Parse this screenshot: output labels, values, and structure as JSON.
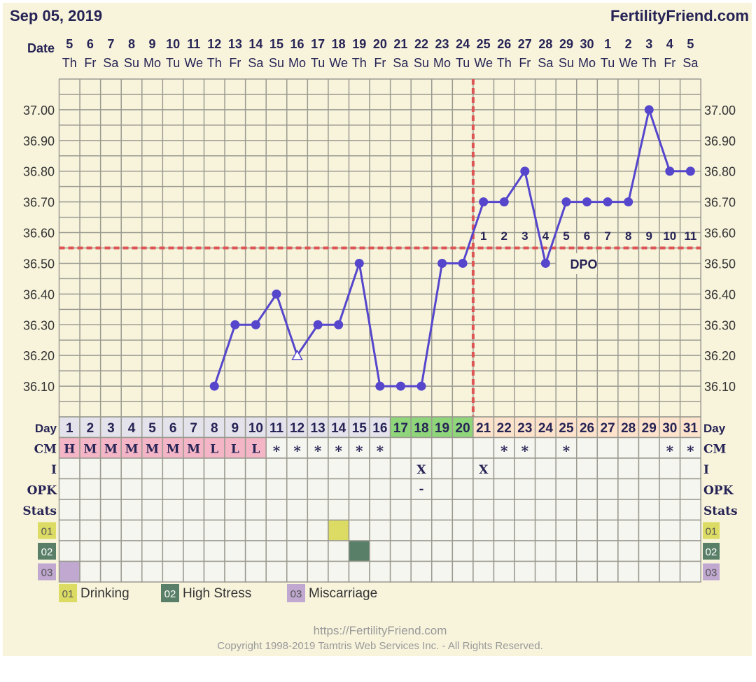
{
  "header": {
    "date": "Sep 05, 2019",
    "brand": "FertilityFriend.com"
  },
  "labels": {
    "date": "Date",
    "day": "Day",
    "cm": "CM",
    "i": "I",
    "opk": "OPK",
    "stats": "Stats",
    "dpo": "DPO"
  },
  "footer": {
    "url": "https://FertilityFriend.com",
    "copyright": "Copyright 1998-2019 Tamtris Web Services Inc. - All Rights Reserved."
  },
  "legend": [
    {
      "code": "01",
      "label": "Drinking",
      "color": "#dcdc64"
    },
    {
      "code": "02",
      "label": "High Stress",
      "color": "#5a7f68"
    },
    {
      "code": "03",
      "label": "Miscarriage",
      "color": "#c0a8d0"
    }
  ],
  "colors": {
    "background": "#f8f4dc",
    "line": "#5546cc",
    "coverline": "#dd5555",
    "cycle_days": "#e4e2ea",
    "fertile_days": "#8fd67a",
    "luteal_days": "#fde3cc",
    "cm_marked": "#f4b6c6"
  },
  "chart_data": {
    "type": "line",
    "ylim": [
      36.0,
      37.1
    ],
    "y_ticks": [
      "37.00",
      "36.90",
      "36.80",
      "36.70",
      "36.60",
      "36.50",
      "36.40",
      "36.30",
      "36.20",
      "36.10"
    ],
    "dates": [
      "5",
      "6",
      "7",
      "8",
      "9",
      "10",
      "11",
      "12",
      "13",
      "14",
      "15",
      "16",
      "17",
      "18",
      "19",
      "20",
      "21",
      "22",
      "23",
      "24",
      "25",
      "26",
      "27",
      "28",
      "29",
      "30",
      "1",
      "2",
      "3",
      "4",
      "5"
    ],
    "weekdays": [
      "Th",
      "Fr",
      "Sa",
      "Su",
      "Mo",
      "Tu",
      "We",
      "Th",
      "Fr",
      "Sa",
      "Su",
      "Mo",
      "Tu",
      "We",
      "Th",
      "Fr",
      "Sa",
      "Su",
      "Mo",
      "Tu",
      "We",
      "Th",
      "Fr",
      "Sa",
      "Su",
      "Mo",
      "Tu",
      "We",
      "Th",
      "Fr",
      "Sa"
    ],
    "days": [
      1,
      2,
      3,
      4,
      5,
      6,
      7,
      8,
      9,
      10,
      11,
      12,
      13,
      14,
      15,
      16,
      17,
      18,
      19,
      20,
      21,
      22,
      23,
      24,
      25,
      26,
      27,
      28,
      29,
      30,
      31
    ],
    "temperatures": [
      null,
      null,
      null,
      null,
      null,
      null,
      null,
      36.1,
      36.3,
      36.3,
      36.4,
      36.2,
      36.3,
      36.3,
      36.5,
      36.1,
      36.1,
      36.1,
      36.5,
      36.5,
      36.7,
      36.7,
      36.8,
      36.5,
      36.7,
      36.7,
      36.7,
      36.7,
      37.0,
      36.8,
      36.8
    ],
    "open_markers": [
      12
    ],
    "coverline": 36.55,
    "ovulation_day": 20,
    "dpo": [
      1,
      2,
      3,
      4,
      5,
      6,
      7,
      8,
      9,
      10,
      11
    ],
    "fertile_days": [
      17,
      18,
      19,
      20
    ],
    "cm": [
      "H",
      "M",
      "M",
      "M",
      "M",
      "M",
      "M",
      "L",
      "L",
      "L",
      "*",
      "*",
      "*",
      "*",
      "*",
      "*",
      "",
      "",
      "",
      "",
      "",
      "*",
      "*",
      "",
      "*",
      "",
      "",
      "",
      "",
      "*",
      "*"
    ],
    "intercourse": [
      18,
      21
    ],
    "opk": {
      "18": "-"
    },
    "stats": {
      "01": [
        14
      ],
      "02": [
        15
      ],
      "03": [
        1
      ]
    }
  }
}
